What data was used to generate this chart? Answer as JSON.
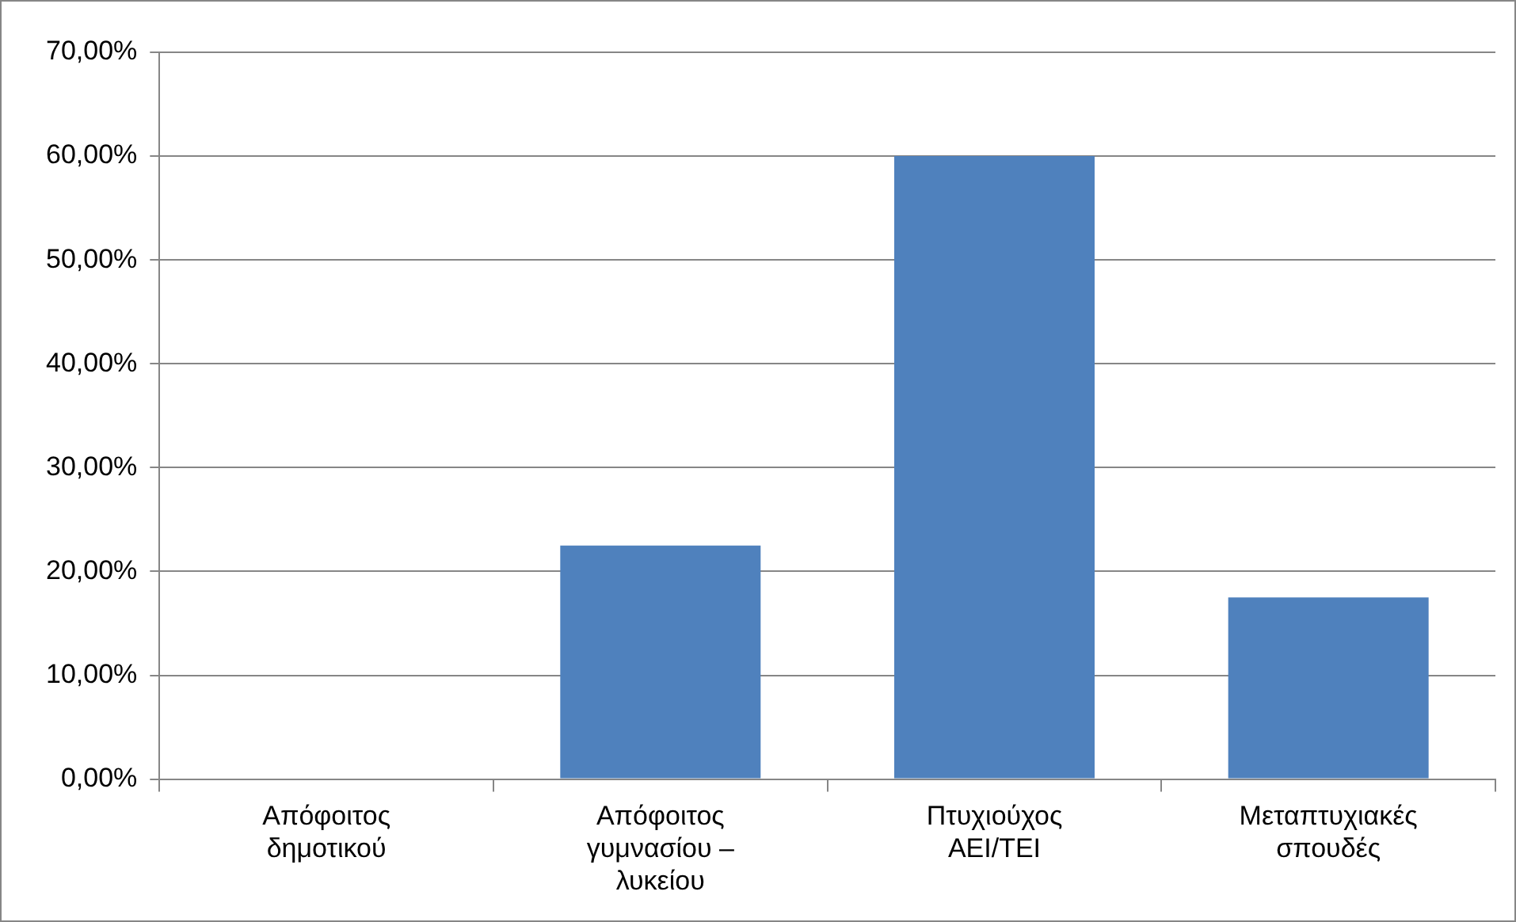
{
  "chart_data": {
    "type": "bar",
    "categories": [
      "Απόφοιτος δημοτικού",
      "Απόφοιτος γυμνασίου – λυκείου",
      "Πτυχιούχος ΑΕΙ/ΤΕΙ",
      "Μεταπτυχιακές σπουδές"
    ],
    "values": [
      0,
      22.5,
      60,
      17.5
    ],
    "color": "#4f81bd",
    "ylim": [
      0,
      70
    ],
    "yticks": [
      {
        "value": 0,
        "label": "0,00%"
      },
      {
        "value": 10,
        "label": "10,00%"
      },
      {
        "value": 20,
        "label": "20,00%"
      },
      {
        "value": 30,
        "label": "30,00%"
      },
      {
        "value": 40,
        "label": "40,00%"
      },
      {
        "value": 50,
        "label": "50,00%"
      },
      {
        "value": 60,
        "label": "60,00%"
      },
      {
        "value": 70,
        "label": "70,00%"
      }
    ],
    "grid": "y",
    "legend": false
  }
}
